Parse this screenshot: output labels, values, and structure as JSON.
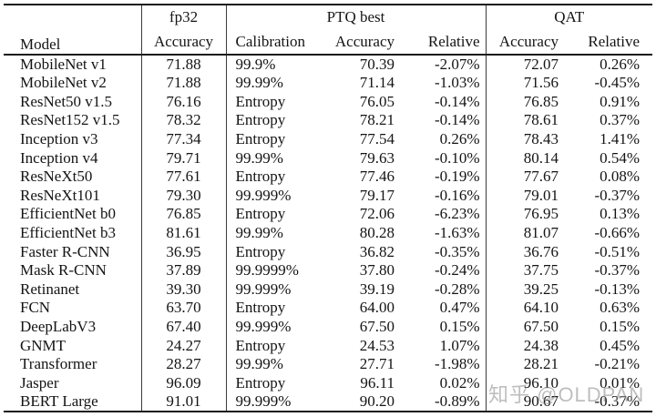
{
  "table": {
    "header": {
      "model": "Model",
      "fp32_group": "fp32",
      "fp32_sub": "Accuracy",
      "ptq_group": "PTQ best",
      "ptq_subs": [
        "Calibration",
        "Accuracy",
        "Relative"
      ],
      "qat_group": "QAT",
      "qat_subs": [
        "Accuracy",
        "Relative"
      ]
    },
    "rows": [
      {
        "model": "MobileNet v1",
        "fp32": "71.88",
        "calibration": "99.9%",
        "ptq_acc": "70.39",
        "ptq_rel": "-2.07%",
        "qat_acc": "72.07",
        "qat_rel": "0.26%"
      },
      {
        "model": "MobileNet v2",
        "fp32": "71.88",
        "calibration": "99.99%",
        "ptq_acc": "71.14",
        "ptq_rel": "-1.03%",
        "qat_acc": "71.56",
        "qat_rel": "-0.45%"
      },
      {
        "model": "ResNet50 v1.5",
        "fp32": "76.16",
        "calibration": "Entropy",
        "ptq_acc": "76.05",
        "ptq_rel": "-0.14%",
        "qat_acc": "76.85",
        "qat_rel": "0.91%"
      },
      {
        "model": "ResNet152 v1.5",
        "fp32": "78.32",
        "calibration": "Entropy",
        "ptq_acc": "78.21",
        "ptq_rel": "-0.14%",
        "qat_acc": "78.61",
        "qat_rel": "0.37%"
      },
      {
        "model": "Inception v3",
        "fp32": "77.34",
        "calibration": "Entropy",
        "ptq_acc": "77.54",
        "ptq_rel": "0.26%",
        "qat_acc": "78.43",
        "qat_rel": "1.41%"
      },
      {
        "model": "Inception v4",
        "fp32": "79.71",
        "calibration": "99.99%",
        "ptq_acc": "79.63",
        "ptq_rel": "-0.10%",
        "qat_acc": "80.14",
        "qat_rel": "0.54%"
      },
      {
        "model": "ResNeXt50",
        "fp32": "77.61",
        "calibration": "Entropy",
        "ptq_acc": "77.46",
        "ptq_rel": "-0.19%",
        "qat_acc": "77.67",
        "qat_rel": "0.08%"
      },
      {
        "model": "ResNeXt101",
        "fp32": "79.30",
        "calibration": "99.999%",
        "ptq_acc": "79.17",
        "ptq_rel": "-0.16%",
        "qat_acc": "79.01",
        "qat_rel": "-0.37%"
      },
      {
        "model": "EfficientNet b0",
        "fp32": "76.85",
        "calibration": "Entropy",
        "ptq_acc": "72.06",
        "ptq_rel": "-6.23%",
        "qat_acc": "76.95",
        "qat_rel": "0.13%"
      },
      {
        "model": "EfficientNet b3",
        "fp32": "81.61",
        "calibration": "99.99%",
        "ptq_acc": "80.28",
        "ptq_rel": "-1.63%",
        "qat_acc": "81.07",
        "qat_rel": "-0.66%"
      },
      {
        "model": "Faster R-CNN",
        "fp32": "36.95",
        "calibration": "Entropy",
        "ptq_acc": "36.82",
        "ptq_rel": "-0.35%",
        "qat_acc": "36.76",
        "qat_rel": "-0.51%"
      },
      {
        "model": "Mask R-CNN",
        "fp32": "37.89",
        "calibration": "99.9999%",
        "ptq_acc": "37.80",
        "ptq_rel": "-0.24%",
        "qat_acc": "37.75",
        "qat_rel": "-0.37%"
      },
      {
        "model": "Retinanet",
        "fp32": "39.30",
        "calibration": "99.999%",
        "ptq_acc": "39.19",
        "ptq_rel": "-0.28%",
        "qat_acc": "39.25",
        "qat_rel": "-0.13%"
      },
      {
        "model": "FCN",
        "fp32": "63.70",
        "calibration": "Entropy",
        "ptq_acc": "64.00",
        "ptq_rel": "0.47%",
        "qat_acc": "64.10",
        "qat_rel": "0.63%"
      },
      {
        "model": "DeepLabV3",
        "fp32": "67.40",
        "calibration": "99.999%",
        "ptq_acc": "67.50",
        "ptq_rel": "0.15%",
        "qat_acc": "67.50",
        "qat_rel": "0.15%"
      },
      {
        "model": "GNMT",
        "fp32": "24.27",
        "calibration": "Entropy",
        "ptq_acc": "24.53",
        "ptq_rel": "1.07%",
        "qat_acc": "24.38",
        "qat_rel": "0.45%"
      },
      {
        "model": "Transformer",
        "fp32": "28.27",
        "calibration": "99.99%",
        "ptq_acc": "27.71",
        "ptq_rel": "-1.98%",
        "qat_acc": "28.21",
        "qat_rel": "-0.21%"
      },
      {
        "model": "Jasper",
        "fp32": "96.09",
        "calibration": "Entropy",
        "ptq_acc": "96.11",
        "ptq_rel": "0.02%",
        "qat_acc": "96.10",
        "qat_rel": "0.01%"
      },
      {
        "model": "BERT Large",
        "fp32": "91.01",
        "calibration": "99.999%",
        "ptq_acc": "90.20",
        "ptq_rel": "-0.89%",
        "qat_acc": "90.67",
        "qat_rel": "-0.37%"
      }
    ]
  },
  "watermark": {
    "text": "知乎 @OLDPAN"
  }
}
